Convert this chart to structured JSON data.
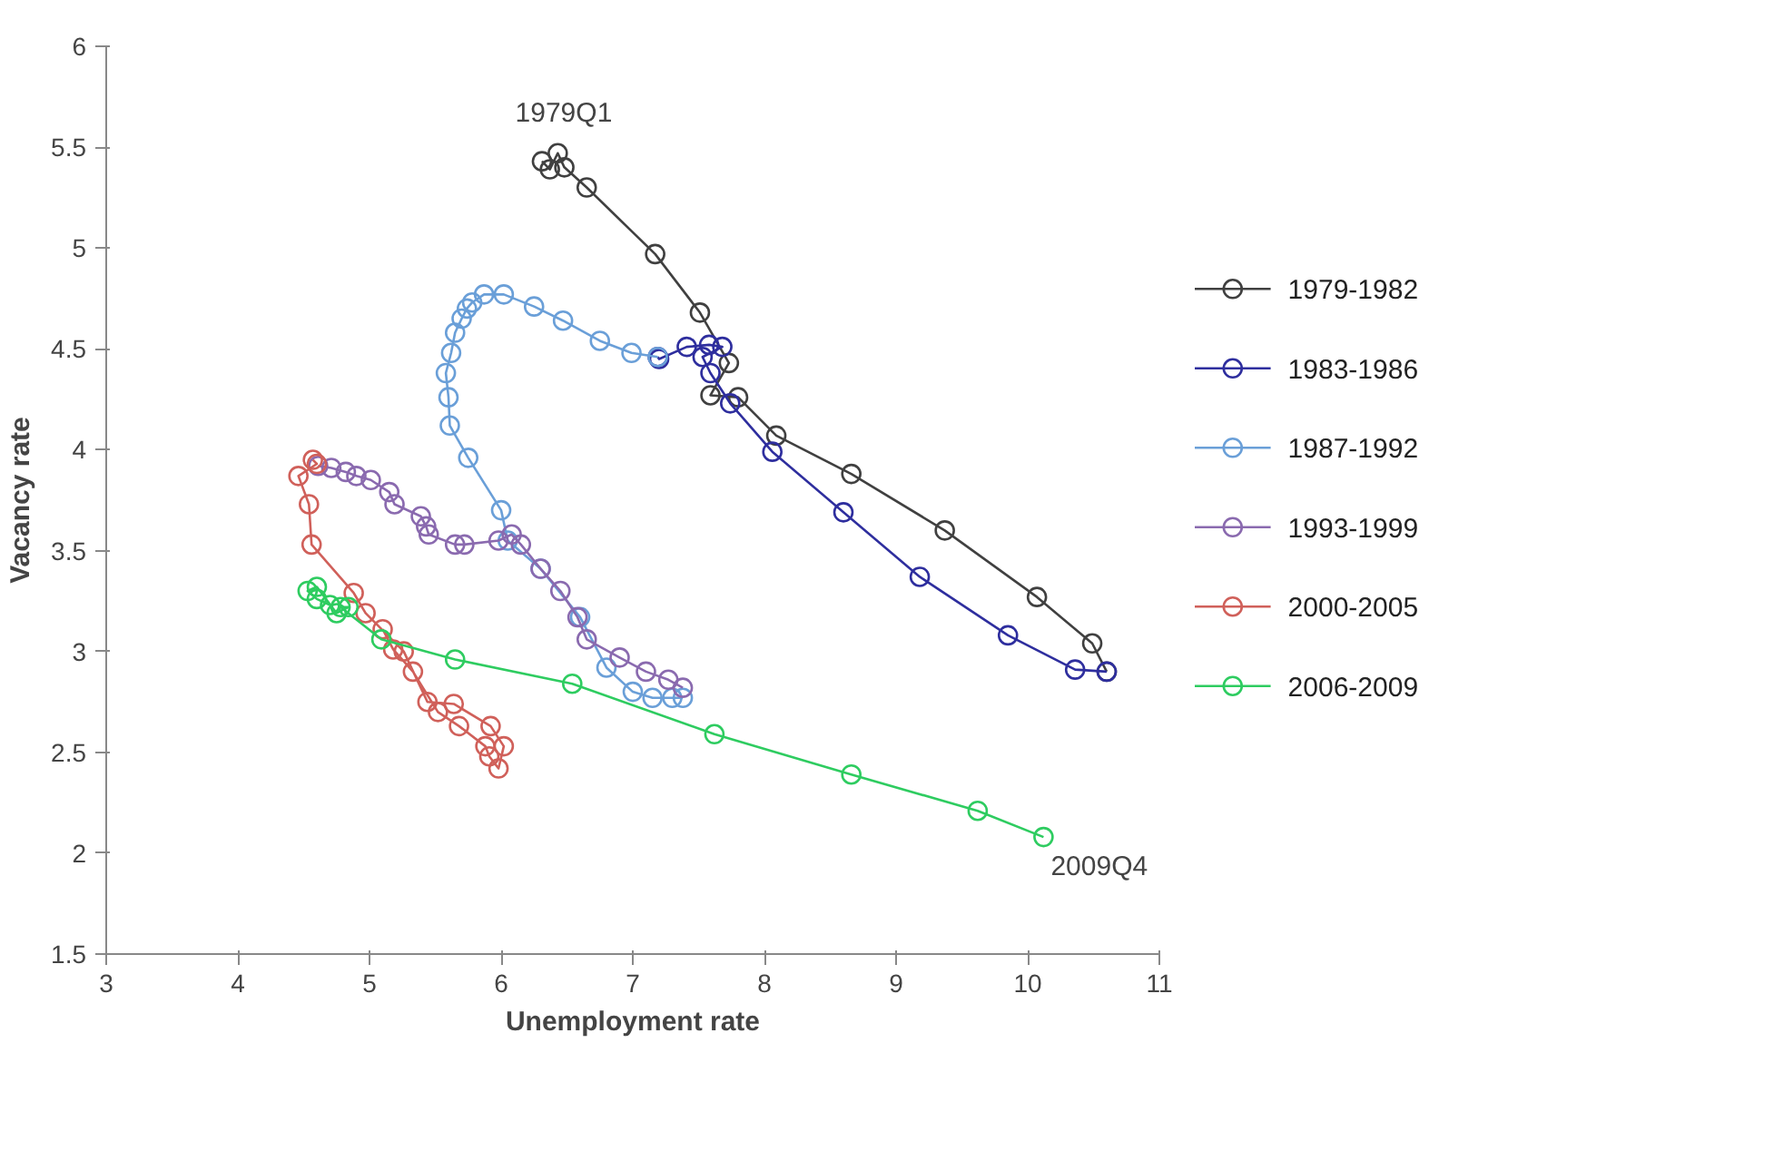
{
  "chart_data": {
    "type": "line",
    "xlabel": "Unemployment rate",
    "ylabel": "Vacancy rate",
    "xlim": [
      3,
      11
    ],
    "ylim": [
      1.5,
      6
    ],
    "xticks": [
      3,
      4,
      5,
      6,
      7,
      8,
      9,
      10,
      11
    ],
    "yticks": [
      1.5,
      2,
      2.5,
      3,
      3.5,
      4,
      4.5,
      5,
      5.5,
      6
    ],
    "grid": false,
    "legend": "right",
    "marker": "circle",
    "line_style": "solid",
    "annotations": [
      {
        "text": "1979Q1",
        "x": 6.31,
        "y": 5.43
      },
      {
        "text": "2009Q4",
        "x": 10.12,
        "y": 2.08
      }
    ],
    "series": [
      {
        "name": "1979-1982",
        "color": "#404040",
        "x": [
          6.31,
          6.37,
          6.43,
          6.48,
          6.65,
          7.17,
          7.51,
          7.73,
          7.59,
          7.8,
          8.09,
          8.66,
          9.37,
          10.07,
          10.49,
          10.6
        ],
        "values": [
          5.43,
          5.39,
          5.47,
          5.4,
          5.3,
          4.97,
          4.68,
          4.43,
          4.27,
          4.26,
          4.07,
          3.88,
          3.6,
          3.27,
          3.04,
          2.9
        ]
      },
      {
        "name": "1983-1986",
        "color": "#2e2e9e",
        "x": [
          10.6,
          10.36,
          9.85,
          9.18,
          8.6,
          8.06,
          7.74,
          7.59,
          7.53,
          7.68,
          7.58,
          7.41,
          7.2,
          7.19
        ],
        "values": [
          2.9,
          2.91,
          3.08,
          3.37,
          3.69,
          3.99,
          4.23,
          4.38,
          4.46,
          4.51,
          4.52,
          4.51,
          4.45,
          4.46
        ]
      },
      {
        "name": "1987-1992",
        "color": "#6a9fd8",
        "x": [
          7.19,
          6.99,
          6.75,
          6.47,
          6.25,
          6.02,
          5.87,
          5.78,
          5.74,
          5.7,
          5.65,
          5.62,
          5.58,
          5.6,
          5.61,
          5.75,
          6.0,
          6.05,
          6.3,
          6.6,
          6.8,
          7.0,
          7.15,
          7.3,
          7.38
        ],
        "values": [
          4.46,
          4.48,
          4.54,
          4.64,
          4.71,
          4.77,
          4.77,
          4.73,
          4.7,
          4.65,
          4.58,
          4.48,
          4.38,
          4.26,
          4.12,
          3.96,
          3.7,
          3.55,
          3.41,
          3.17,
          2.92,
          2.8,
          2.77,
          2.77,
          2.77
        ]
      },
      {
        "name": "1993-1999",
        "color": "#8a6aaf",
        "x": [
          7.38,
          7.27,
          7.1,
          6.9,
          6.65,
          6.58,
          6.45,
          6.3,
          6.15,
          6.08,
          5.98,
          5.72,
          5.65,
          5.45,
          5.43,
          5.39,
          5.19,
          5.15,
          5.01,
          4.9,
          4.82,
          4.71,
          4.61
        ],
        "values": [
          2.82,
          2.86,
          2.9,
          2.97,
          3.06,
          3.17,
          3.3,
          3.41,
          3.53,
          3.58,
          3.55,
          3.53,
          3.53,
          3.58,
          3.62,
          3.67,
          3.73,
          3.79,
          3.85,
          3.87,
          3.89,
          3.91,
          3.92
        ]
      },
      {
        "name": "2000-2005",
        "color": "#d0605a",
        "x": [
          4.57,
          4.6,
          4.46,
          4.54,
          4.56,
          4.88,
          4.97,
          5.26,
          5.44,
          5.64,
          5.92,
          6.02,
          5.98,
          5.91,
          5.88,
          5.68,
          5.52,
          5.33,
          5.18,
          5.1
        ],
        "values": [
          3.95,
          3.93,
          3.87,
          3.73,
          3.53,
          3.29,
          3.19,
          3.0,
          2.75,
          2.74,
          2.63,
          2.53,
          2.42,
          2.48,
          2.53,
          2.63,
          2.7,
          2.9,
          3.01,
          3.11
        ]
      },
      {
        "name": "2006-2009",
        "color": "#2ecc60",
        "x": [
          4.7,
          4.6,
          4.53,
          4.6,
          4.75,
          4.84,
          4.78,
          5.09,
          5.65,
          6.54,
          7.62,
          8.66,
          9.62,
          10.12
        ],
        "values": [
          3.23,
          3.26,
          3.3,
          3.32,
          3.19,
          3.22,
          3.22,
          3.06,
          2.96,
          2.84,
          2.59,
          2.39,
          2.21,
          2.08
        ]
      }
    ]
  }
}
